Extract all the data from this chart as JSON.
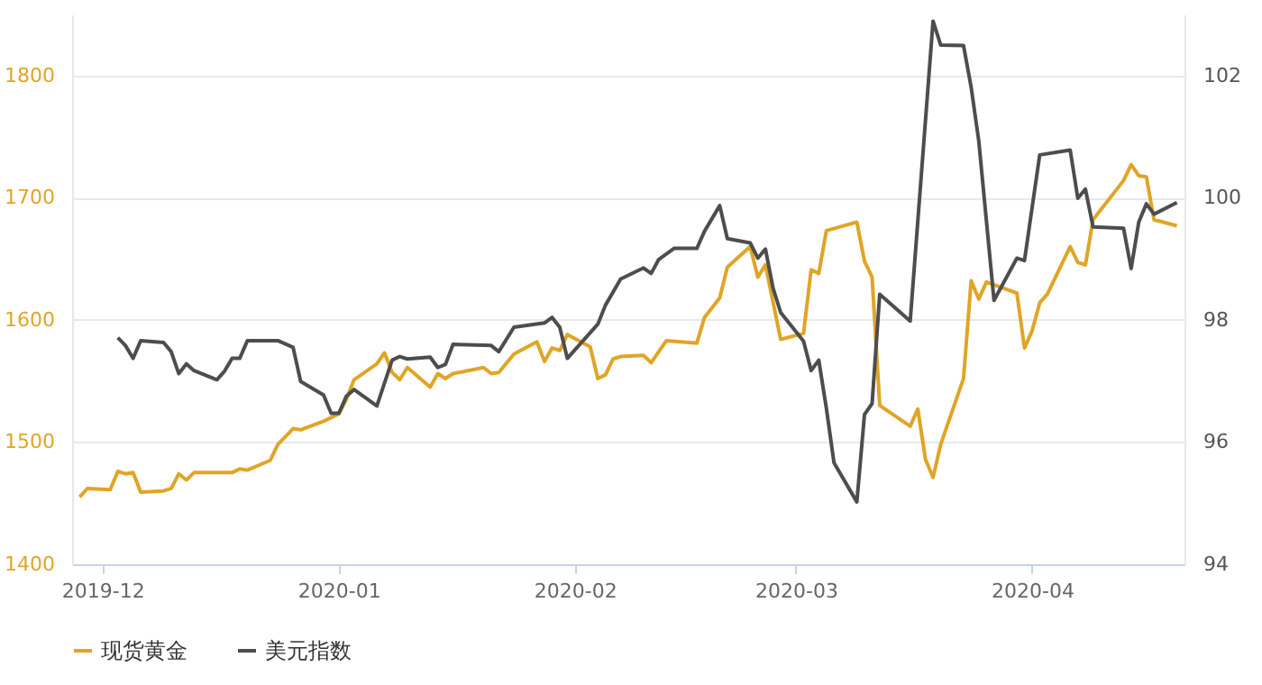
{
  "chart_data": {
    "type": "line",
    "xlim": [
      "2019-11-27",
      "2020-04-21"
    ],
    "xticks": [
      "2019-12",
      "2020-01",
      "2020-02",
      "2020-03",
      "2020-04"
    ],
    "ylim": [
      1400,
      1850
    ],
    "yticks": [
      1400,
      1500,
      1600,
      1700,
      1800
    ],
    "y2lim": [
      94,
      103
    ],
    "y2ticks": [
      94,
      96,
      98,
      100,
      102
    ],
    "grid": "y",
    "legend": "bottom",
    "line_style": "solid",
    "series": [
      {
        "name": "现货黄金",
        "color": "#e0a526",
        "x": [
          "2019-11-28",
          "2019-11-29",
          "2019-12-02",
          "2019-12-03",
          "2019-12-04",
          "2019-12-05",
          "2019-12-06",
          "2019-12-09",
          "2019-12-10",
          "2019-12-11",
          "2019-12-12",
          "2019-12-13",
          "2019-12-18",
          "2019-12-19",
          "2019-12-20",
          "2019-12-23",
          "2019-12-24",
          "2019-12-26",
          "2019-12-27",
          "2019-12-30",
          "2020-01-01",
          "2020-01-02",
          "2020-01-03",
          "2020-01-06",
          "2020-01-07",
          "2020-01-08",
          "2020-01-09",
          "2020-01-10",
          "2020-01-13",
          "2020-01-14",
          "2020-01-15",
          "2020-01-16",
          "2020-01-20",
          "2020-01-21",
          "2020-01-22",
          "2020-01-24",
          "2020-01-27",
          "2020-01-28",
          "2020-01-29",
          "2020-01-30",
          "2020-01-31",
          "2020-02-03",
          "2020-02-04",
          "2020-02-05",
          "2020-02-06",
          "2020-02-07",
          "2020-02-10",
          "2020-02-11",
          "2020-02-13",
          "2020-02-17",
          "2020-02-18",
          "2020-02-20",
          "2020-02-21",
          "2020-02-24",
          "2020-02-25",
          "2020-02-26",
          "2020-02-28",
          "2020-03-02",
          "2020-03-03",
          "2020-03-04",
          "2020-03-05",
          "2020-03-09",
          "2020-03-10",
          "2020-03-11",
          "2020-03-12",
          "2020-03-16",
          "2020-03-17",
          "2020-03-18",
          "2020-03-19",
          "2020-03-20",
          "2020-03-23",
          "2020-03-24",
          "2020-03-25",
          "2020-03-26",
          "2020-03-30",
          "2020-03-31",
          "2020-04-01",
          "2020-04-02",
          "2020-04-03",
          "2020-04-06",
          "2020-04-07",
          "2020-04-08",
          "2020-04-09",
          "2020-04-13",
          "2020-04-14",
          "2020-04-15",
          "2020-04-16",
          "2020-04-17",
          "2020-04-20"
        ],
        "values": [
          1455,
          1462,
          1461,
          1476,
          1474,
          1475,
          1459,
          1460,
          1462,
          1474,
          1469,
          1475,
          1475,
          1478,
          1477,
          1485,
          1498,
          1511,
          1510,
          1517,
          1523,
          1535,
          1551,
          1564,
          1573,
          1557,
          1551,
          1561,
          1545,
          1556,
          1552,
          1556,
          1561,
          1556,
          1557,
          1572,
          1582,
          1566,
          1577,
          1575,
          1588,
          1578,
          1552,
          1555,
          1568,
          1570,
          1571,
          1565,
          1583,
          1581,
          1602,
          1618,
          1643,
          1660,
          1635,
          1645,
          1584,
          1589,
          1641,
          1638,
          1673,
          1680,
          1648,
          1635,
          1530,
          1513,
          1527,
          1486,
          1471,
          1498,
          1552,
          1632,
          1617,
          1631,
          1622,
          1577,
          1591,
          1614,
          1621,
          1660,
          1647,
          1645,
          1682,
          1714,
          1727,
          1718,
          1717,
          1682,
          1677
        ]
      },
      {
        "name": "美元指数",
        "color": "#4d4d4d",
        "axis": "y2",
        "x": [
          "2019-12-03",
          "2019-12-04",
          "2019-12-05",
          "2019-12-06",
          "2019-12-09",
          "2019-12-10",
          "2019-12-11",
          "2019-12-12",
          "2019-12-13",
          "2019-12-16",
          "2019-12-17",
          "2019-12-18",
          "2019-12-19",
          "2019-12-20",
          "2019-12-24",
          "2019-12-26",
          "2019-12-27",
          "2019-12-30",
          "2019-12-31",
          "2020-01-01",
          "2020-01-02",
          "2020-01-03",
          "2020-01-06",
          "2020-01-08",
          "2020-01-09",
          "2020-01-10",
          "2020-01-13",
          "2020-01-14",
          "2020-01-15",
          "2020-01-16",
          "2020-01-21",
          "2020-01-22",
          "2020-01-24",
          "2020-01-28",
          "2020-01-29",
          "2020-01-30",
          "2020-01-31",
          "2020-02-04",
          "2020-02-05",
          "2020-02-07",
          "2020-02-10",
          "2020-02-11",
          "2020-02-12",
          "2020-02-14",
          "2020-02-17",
          "2020-02-18",
          "2020-02-20",
          "2020-02-21",
          "2020-02-24",
          "2020-02-25",
          "2020-02-26",
          "2020-02-27",
          "2020-02-28",
          "2020-03-02",
          "2020-03-03",
          "2020-03-04",
          "2020-03-05",
          "2020-03-06",
          "2020-03-09",
          "2020-03-10",
          "2020-03-11",
          "2020-03-12",
          "2020-03-16",
          "2020-03-19",
          "2020-03-20",
          "2020-03-23",
          "2020-03-24",
          "2020-03-25",
          "2020-03-27",
          "2020-03-30",
          "2020-03-31",
          "2020-04-02",
          "2020-04-06",
          "2020-04-07",
          "2020-04-08",
          "2020-04-09",
          "2020-04-13",
          "2020-04-14",
          "2020-04-15",
          "2020-04-16",
          "2020-04-17",
          "2020-04-20"
        ],
        "values": [
          97.71,
          97.58,
          97.37,
          97.66,
          97.63,
          97.48,
          97.12,
          97.28,
          97.17,
          97.02,
          97.16,
          97.37,
          97.37,
          97.66,
          97.66,
          97.55,
          96.99,
          96.77,
          96.47,
          96.47,
          96.75,
          96.86,
          96.59,
          97.34,
          97.4,
          97.36,
          97.39,
          97.22,
          97.27,
          97.6,
          97.58,
          97.48,
          97.88,
          97.95,
          98.04,
          97.88,
          97.37,
          97.93,
          98.24,
          98.67,
          98.85,
          98.76,
          98.99,
          99.17,
          99.17,
          99.45,
          99.87,
          99.33,
          99.26,
          99.01,
          99.16,
          98.52,
          98.12,
          97.65,
          97.17,
          97.34,
          96.55,
          95.66,
          95.02,
          96.45,
          96.63,
          98.42,
          97.98,
          102.89,
          102.5,
          102.49,
          101.81,
          100.93,
          98.32,
          99.01,
          98.97,
          100.7,
          100.78,
          99.99,
          100.14,
          99.52,
          99.5,
          98.84,
          99.6,
          99.9,
          99.73,
          99.92
        ]
      }
    ]
  }
}
